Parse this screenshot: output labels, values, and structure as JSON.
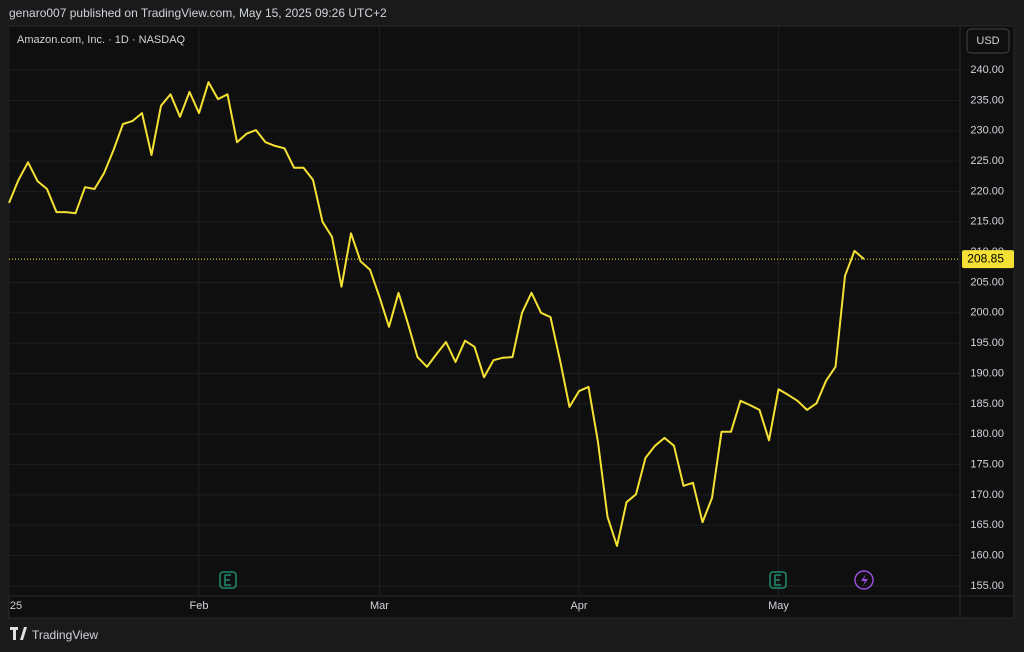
{
  "header": {
    "text": "genaro007 published on TradingView.com, May 15, 2025 09:26 UTC+2"
  },
  "footer": {
    "brand": "TradingView"
  },
  "chart_data": {
    "type": "line",
    "title": "Amazon.com, Inc. · 1D · NASDAQ",
    "currency": "USD",
    "color": "#f5e133",
    "grid": true,
    "categories": [
      "25",
      null,
      null,
      null,
      null,
      null,
      null,
      null,
      null,
      null,
      null,
      null,
      null,
      null,
      null,
      null,
      null,
      null,
      null,
      null,
      "Feb",
      null,
      null,
      null,
      null,
      null,
      null,
      null,
      null,
      null,
      null,
      null,
      null,
      null,
      null,
      null,
      null,
      null,
      null,
      "Mar",
      null,
      null,
      null,
      null,
      null,
      null,
      null,
      null,
      null,
      null,
      null,
      null,
      null,
      null,
      null,
      null,
      null,
      null,
      null,
      null,
      "Apr",
      null,
      null,
      null,
      null,
      null,
      null,
      null,
      null,
      null,
      null,
      null,
      null,
      null,
      null,
      null,
      null,
      null,
      null,
      null,
      null,
      "May",
      null,
      null,
      null,
      null,
      null,
      null,
      null,
      null,
      null
    ],
    "values": [
      218.1,
      221.9,
      224.8,
      221.7,
      220.4,
      216.6,
      216.6,
      216.4,
      220.7,
      220.4,
      223.0,
      226.8,
      231.1,
      231.6,
      232.9,
      226.0,
      234.1,
      236.0,
      232.3,
      236.4,
      232.9,
      238.0,
      235.2,
      236.0,
      228.1,
      229.5,
      230.1,
      228.1,
      227.5,
      227.1,
      223.9,
      223.9,
      221.9,
      215.0,
      212.5,
      204.3,
      213.1,
      208.5,
      207.1,
      202.6,
      197.7,
      203.3,
      198.2,
      192.7,
      191.1,
      193.2,
      195.2,
      191.9,
      195.4,
      194.4,
      189.4,
      192.2,
      192.6,
      192.7,
      200.0,
      203.3,
      200.0,
      199.3,
      192.2,
      184.5,
      187.1,
      187.8,
      178.7,
      166.4,
      161.6,
      168.8,
      170.1,
      176.1,
      178.1,
      179.4,
      178.1,
      171.5,
      172.0,
      165.5,
      169.5,
      180.4,
      180.4,
      185.5,
      184.8,
      184.0,
      179.0,
      187.4,
      186.5,
      185.5,
      184.0,
      185.1,
      188.8,
      191.1,
      206.1,
      210.2,
      208.85
    ],
    "ylim": [
      153.35,
      247.25
    ],
    "yticks": [
      {
        "value": 155,
        "label": "155.00"
      },
      {
        "value": 160,
        "label": "160.00"
      },
      {
        "value": 165,
        "label": "165.00"
      },
      {
        "value": 170,
        "label": "170.00"
      },
      {
        "value": 175,
        "label": "175.00"
      },
      {
        "value": 180,
        "label": "180.00"
      },
      {
        "value": 185,
        "label": "185.00"
      },
      {
        "value": 190,
        "label": "190.00"
      },
      {
        "value": 195,
        "label": "195.00"
      },
      {
        "value": 200,
        "label": "200.00"
      },
      {
        "value": 205,
        "label": "205.00"
      },
      {
        "value": 210,
        "label": "210.00"
      },
      {
        "value": 215,
        "label": "215.00"
      },
      {
        "value": 220,
        "label": "220.00"
      },
      {
        "value": 225,
        "label": "225.00"
      },
      {
        "value": 230,
        "label": "230.00"
      },
      {
        "value": 235,
        "label": "235.00"
      },
      {
        "value": 240,
        "label": "240.00"
      }
    ]
  }
}
